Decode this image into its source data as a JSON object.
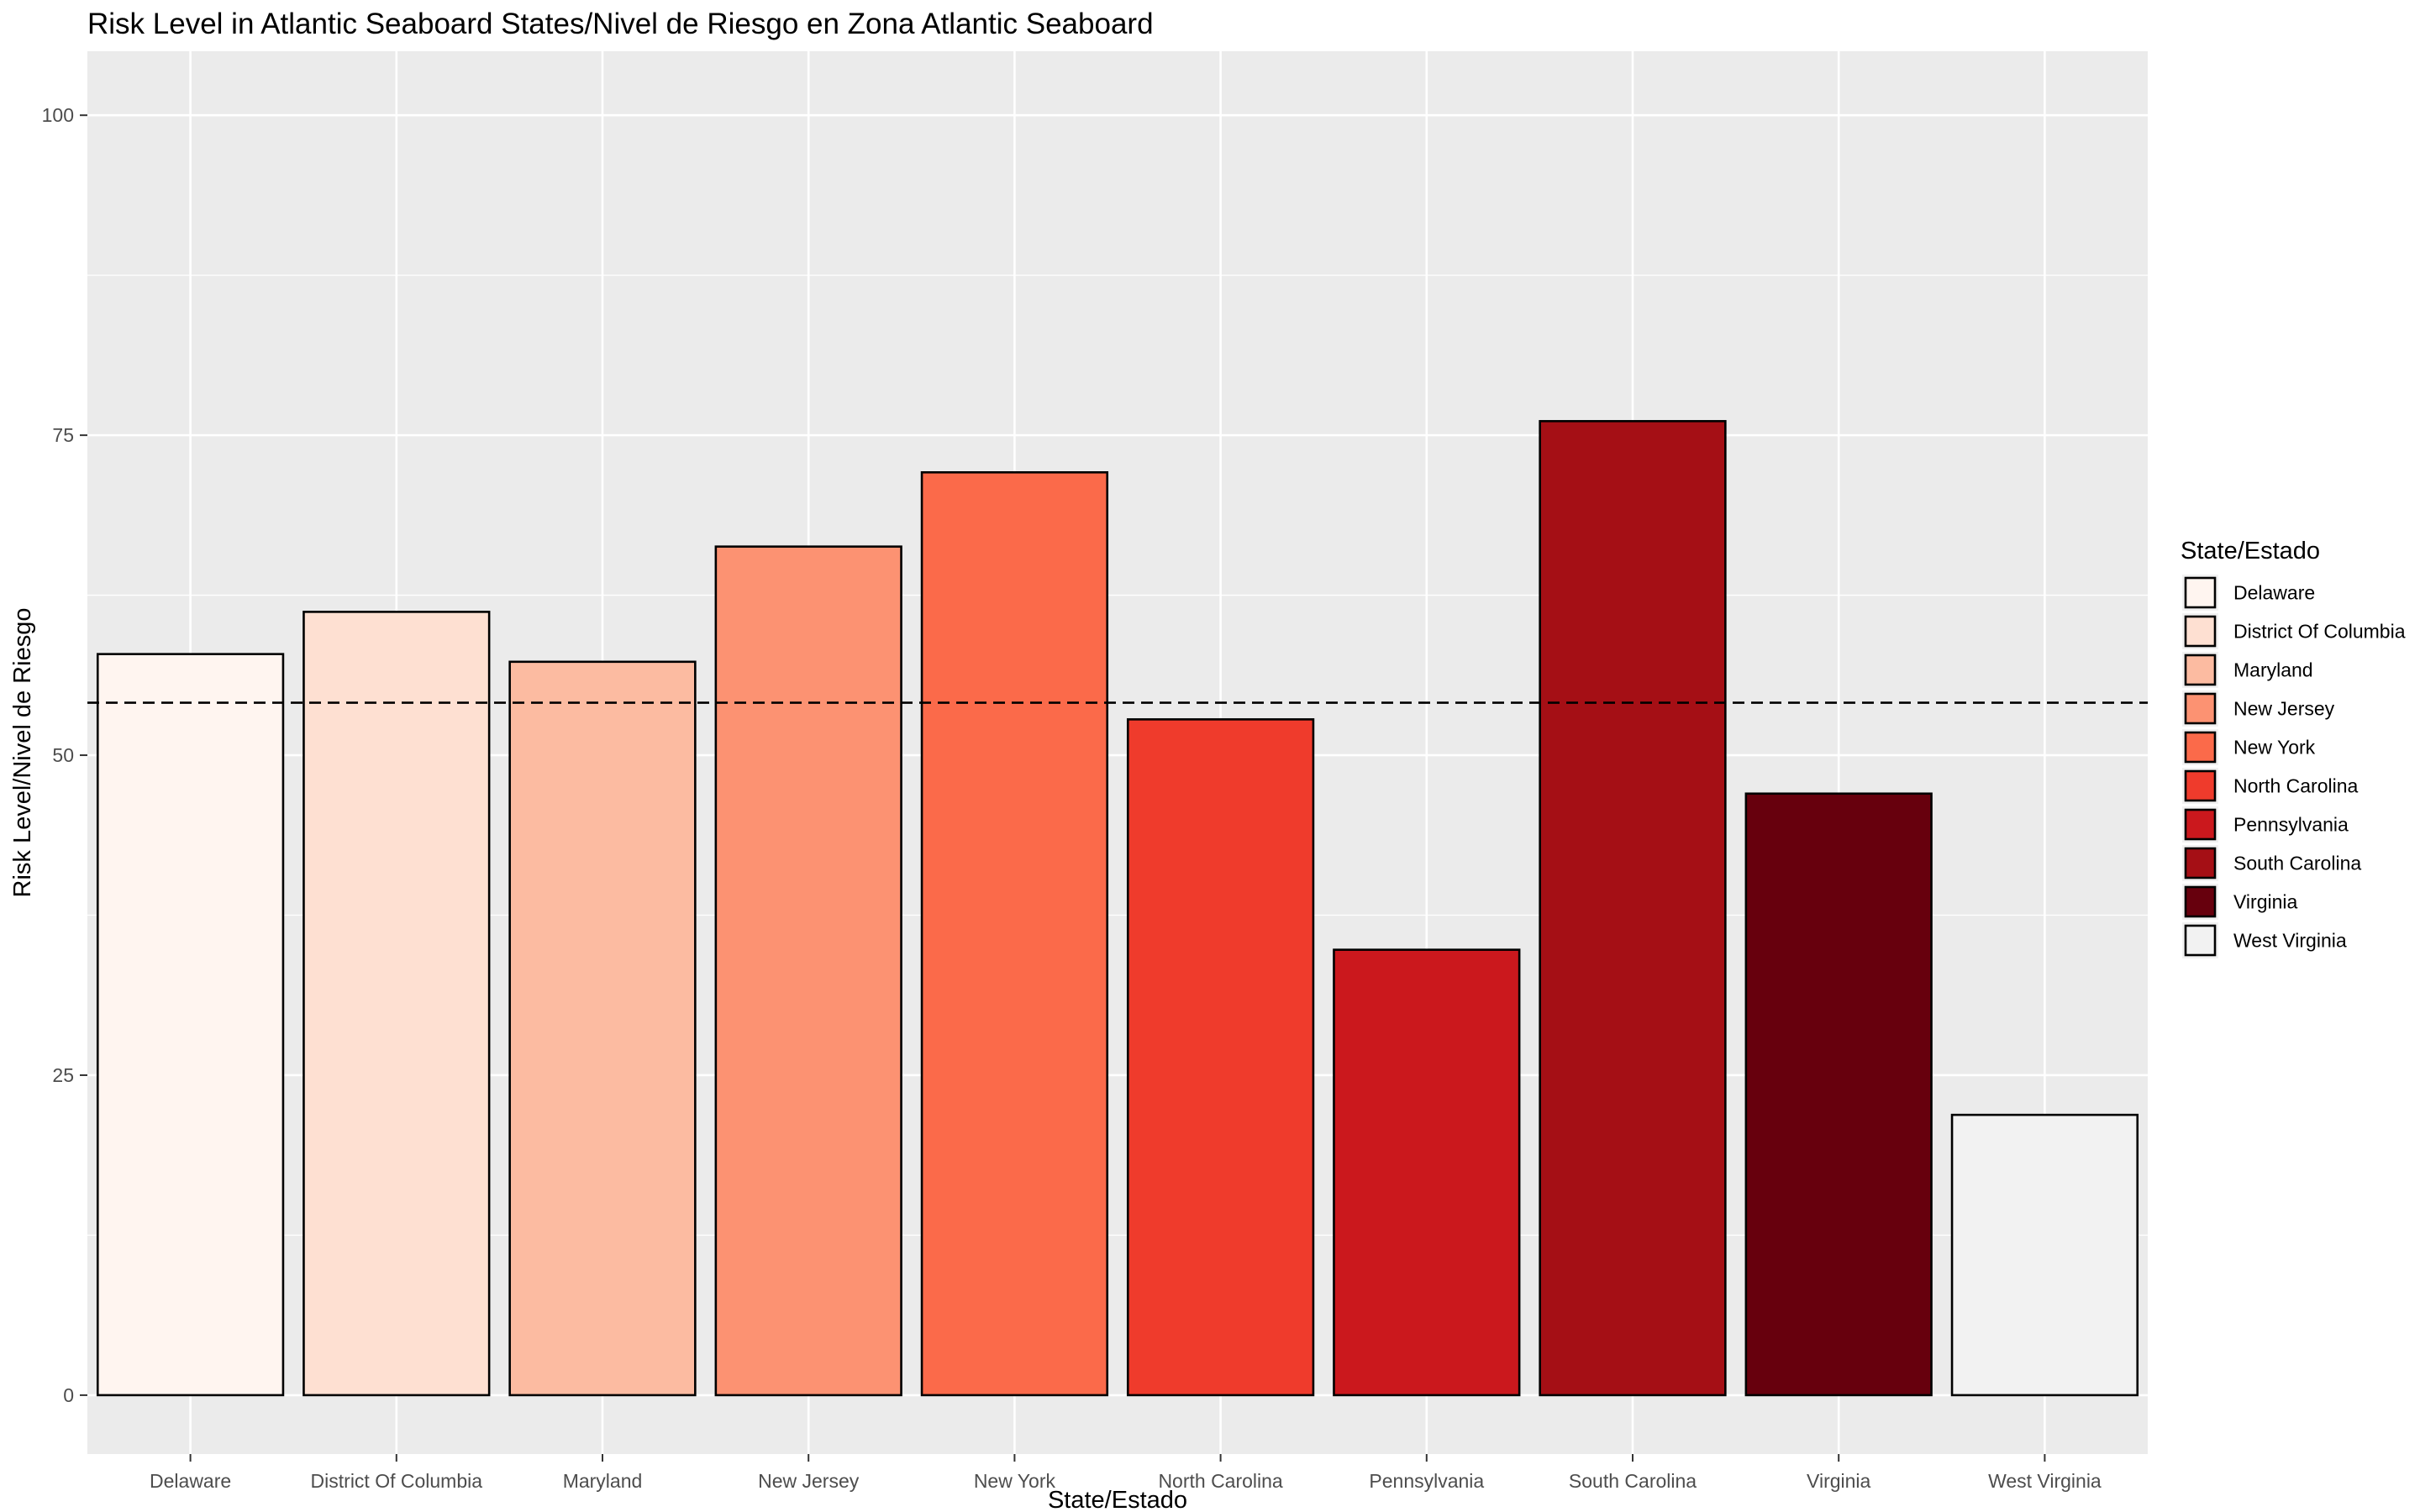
{
  "chart_data": {
    "type": "bar",
    "title": "Risk Level in Atlantic Seaboard States/Nivel de Riesgo en Zona Atlantic Seaboard",
    "xlabel": "State/Estado",
    "ylabel": "Risk Level/Nivel de Riesgo",
    "categories": [
      "Delaware",
      "District Of Columbia",
      "Maryland",
      "New Jersey",
      "New York",
      "North Carolina",
      "Pennsylvania",
      "South Carolina",
      "Virginia",
      "West Virginia"
    ],
    "values": [
      57.9,
      61.2,
      57.3,
      66.3,
      72.1,
      52.8,
      34.8,
      76.1,
      47.0,
      21.9
    ],
    "colors": [
      "#FFF5F0",
      "#FEE0D2",
      "#FCBBA1",
      "#FC9272",
      "#FB6A4A",
      "#EF3B2C",
      "#CB181D",
      "#A50F15",
      "#67000D",
      "#F2F2F2"
    ],
    "reference_line": 54.1,
    "ylim": [
      -4.6,
      105
    ],
    "yticks": [
      0,
      25,
      50,
      75,
      100
    ],
    "grid": true,
    "legend": {
      "title": "State/Estado",
      "placement": "right"
    }
  }
}
